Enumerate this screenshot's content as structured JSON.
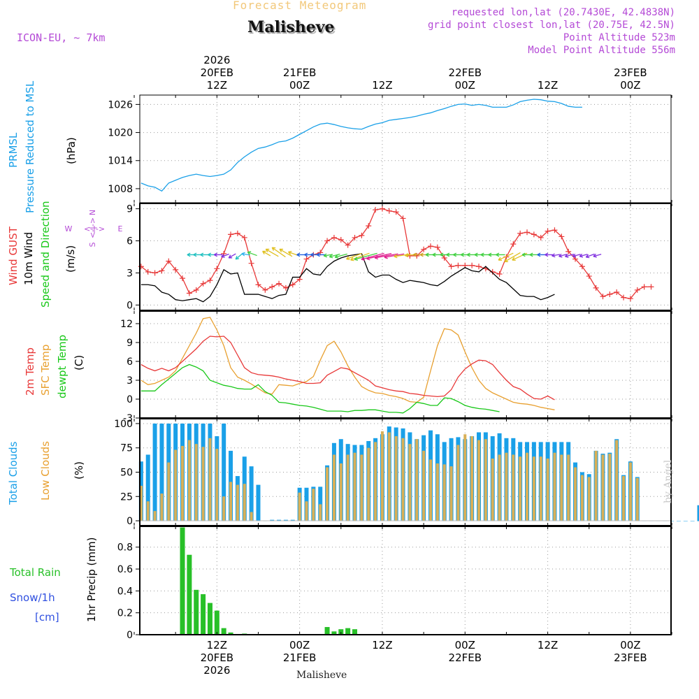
{
  "header": {
    "subtitle": "Forecast Meteogram",
    "location": "Malisheve",
    "model": "ICON-EU, ~ 7km",
    "requested": "requested lon,lat (20.7430E, 42.4838N)",
    "grid_point": "grid point closest lon,lat (20.75E, 42.5N)",
    "point_altitude": "Point Altitude 523m",
    "model_altitude": "Model Point Altitude 556m"
  },
  "footer": {
    "location": "Malisheve",
    "credit": "by Angel"
  },
  "time_axis": {
    "top": [
      {
        "x": 12,
        "lines": [
          "2026",
          "20FEB",
          "12Z"
        ]
      },
      {
        "x": 24,
        "lines": [
          "21FEB",
          "00Z"
        ]
      },
      {
        "x": 36,
        "lines": [
          "12Z"
        ]
      },
      {
        "x": 48,
        "lines": [
          "22FEB",
          "00Z"
        ]
      },
      {
        "x": 60,
        "lines": [
          "12Z"
        ]
      },
      {
        "x": 72,
        "lines": [
          "23FEB",
          "00Z"
        ]
      }
    ],
    "bottom": [
      {
        "x": 12,
        "lines": [
          "12Z",
          "20FEB",
          "2026"
        ]
      },
      {
        "x": 24,
        "lines": [
          "00Z",
          "21FEB"
        ]
      },
      {
        "x": 36,
        "lines": [
          "12Z"
        ]
      },
      {
        "x": 48,
        "lines": [
          "00Z",
          "22FEB"
        ]
      },
      {
        "x": 60,
        "lines": [
          "12Z"
        ]
      },
      {
        "x": 72,
        "lines": [
          "00Z",
          "23FEB"
        ]
      }
    ]
  },
  "panel_labels": {
    "pressure": {
      "name": "PRMSL",
      "desc": "Pressure Reduced to MSL",
      "unit": "(hPa)"
    },
    "wind": {
      "gust": "Wind GUST",
      "wind10": "10m Wind",
      "dir": "Speed and Direction",
      "unit": "(m/s)",
      "compass_n": "N",
      "compass_s": "S",
      "compass_w": "W",
      "compass_e": "E",
      "compass_ns": "<-|->",
      "compass_we": "<-|->"
    },
    "temp": {
      "t2m": "2m Temp",
      "sfc": "SFC Temp",
      "dew": "dewpt Temp",
      "unit": "(C)"
    },
    "clouds": {
      "total": "Total Clouds",
      "low": "Low Clouds",
      "unit": "(%)"
    },
    "precip": {
      "rain": "Total  Rain",
      "snow": "Snow/1h",
      "snow_unit": "[cm]",
      "axis": "1hr Precip (mm)"
    }
  },
  "colors": {
    "pressure": "#1aa0e8",
    "gust": "#e83838",
    "wind": "#000000",
    "t2m": "#e83838",
    "sfc": "#e8a030",
    "dew": "#18c818",
    "total": "#1aa0e8",
    "low": "#d8b058",
    "rain": "#28c028",
    "snow": "#3050e0",
    "purple": "#b44ad6",
    "orange": "#f2c87a"
  },
  "chart_data": [
    {
      "type": "line",
      "title": "PRMSL Pressure Reduced to MSL",
      "ylabel": "(hPa)",
      "ylim": [
        1005,
        1028
      ],
      "yticks": [
        1008,
        1014,
        1020,
        1026
      ],
      "x_hours_from_20FEB00Z": [
        0,
        1,
        2,
        3,
        4,
        5,
        6,
        7,
        8,
        9,
        10,
        11,
        12,
        13,
        14,
        15,
        16,
        17,
        18,
        19,
        20,
        21,
        22,
        23,
        24,
        25,
        26,
        27,
        28,
        29,
        30,
        31,
        32,
        33,
        34,
        35,
        36,
        37,
        38,
        39,
        40,
        41,
        42,
        43,
        44,
        45,
        46,
        47,
        48,
        49,
        50,
        51,
        52,
        53,
        54,
        55,
        56,
        57,
        58,
        59,
        60,
        61,
        62,
        63,
        64,
        65,
        66,
        67,
        68,
        69,
        70,
        71,
        72,
        73,
        74,
        75,
        76
      ],
      "series": [
        {
          "name": "PRMSL",
          "values": [
            1009.2,
            1008.6,
            1008.3,
            1007.5,
            1009.2,
            1009.8,
            1010.4,
            1010.8,
            1011.1,
            1010.8,
            1010.6,
            1010.8,
            1011.1,
            1012.0,
            1013.6,
            1014.8,
            1015.8,
            1016.6,
            1016.9,
            1017.4,
            1018.0,
            1018.2,
            1018.8,
            1019.6,
            1020.4,
            1021.2,
            1021.8,
            1022.0,
            1021.7,
            1021.3,
            1021.0,
            1020.8,
            1020.7,
            1021.3,
            1021.8,
            1022.1,
            1022.6,
            1022.8,
            1023.0,
            1023.2,
            1023.5,
            1023.9,
            1024.2,
            1024.7,
            1025.1,
            1025.6,
            1026.0,
            1026.1,
            1025.8,
            1026.0,
            1025.8,
            1025.4,
            1025.4,
            1025.4,
            1025.9,
            1026.6,
            1026.9,
            1027.1,
            1027.0,
            1026.7,
            1026.6,
            1026.2,
            1025.6,
            1025.4,
            1025.4
          ]
        }
      ]
    },
    {
      "type": "line",
      "title": "Wind GUST / 10m Wind Speed and Direction",
      "ylabel": "(m/s)",
      "ylim": [
        -0.5,
        9.5
      ],
      "yticks": [
        0,
        3,
        6,
        9
      ],
      "series": [
        {
          "name": "Wind GUST",
          "values": [
            3.6,
            3.1,
            3.0,
            3.2,
            4.1,
            3.3,
            2.5,
            1.1,
            1.4,
            2.0,
            2.3,
            3.4,
            4.8,
            6.6,
            6.7,
            6.3,
            3.9,
            1.9,
            1.4,
            1.7,
            2.0,
            1.6,
            1.9,
            2.4,
            4.3,
            4.7,
            4.9,
            6.0,
            6.3,
            6.1,
            5.6,
            6.3,
            6.5,
            7.4,
            8.9,
            9.0,
            8.8,
            8.7,
            8.1,
            4.6,
            4.6,
            5.2,
            5.5,
            5.4,
            4.4,
            3.6,
            3.7,
            3.7,
            3.7,
            3.6,
            3.4,
            3.1,
            2.9,
            4.5,
            5.7,
            6.7,
            6.8,
            6.6,
            6.3,
            6.9,
            7.0,
            6.4,
            5.0,
            4.3,
            3.6,
            2.7,
            1.6,
            0.8,
            1.0,
            1.2,
            0.7,
            0.6,
            1.4,
            1.7,
            1.7
          ]
        },
        {
          "name": "10m Wind",
          "values": [
            1.9,
            1.9,
            1.8,
            1.2,
            1.0,
            0.5,
            0.4,
            0.5,
            0.6,
            0.3,
            0.8,
            1.9,
            3.3,
            2.9,
            3.0,
            1.0,
            1.0,
            1.0,
            0.8,
            0.6,
            0.9,
            1.0,
            2.6,
            2.6,
            3.4,
            2.9,
            2.8,
            3.6,
            4.1,
            4.4,
            4.6,
            4.7,
            4.8,
            3.1,
            2.6,
            2.8,
            2.8,
            2.4,
            2.1,
            2.3,
            2.2,
            2.1,
            1.9,
            1.8,
            2.2,
            2.7,
            3.1,
            3.5,
            3.2,
            3.1,
            3.6,
            3.0,
            2.4,
            2.1,
            1.5,
            0.9,
            0.8,
            0.8,
            0.5,
            0.7,
            1.0
          ]
        }
      ]
    },
    {
      "type": "line",
      "title": "2m Temp / SFC Temp / dewpt Temp",
      "ylabel": "(C)",
      "ylim": [
        -3,
        14
      ],
      "yticks": [
        -3,
        0,
        3,
        6,
        9,
        12
      ],
      "series": [
        {
          "name": "2m Temp",
          "values": [
            5.5,
            4.9,
            4.5,
            4.9,
            4.5,
            5.0,
            6.0,
            7.0,
            8.0,
            9.2,
            10.0,
            9.9,
            10.0,
            9.0,
            7.0,
            5.0,
            4.2,
            3.9,
            3.8,
            3.7,
            3.5,
            3.2,
            3.0,
            2.8,
            2.5,
            2.5,
            2.6,
            3.8,
            4.4,
            5.0,
            4.8,
            4.2,
            3.6,
            3.0,
            2.1,
            1.8,
            1.5,
            1.3,
            1.2,
            0.9,
            0.8,
            0.6,
            0.5,
            0.4,
            0.5,
            1.5,
            3.5,
            4.8,
            5.6,
            6.2,
            6.1,
            5.5,
            4.2,
            3.0,
            2.0,
            1.6,
            0.8,
            0.1,
            0.0,
            0.5,
            -0.1
          ]
        },
        {
          "name": "SFC Temp",
          "values": [
            3.0,
            2.3,
            2.5,
            3.0,
            3.5,
            4.5,
            6.5,
            8.5,
            10.5,
            12.8,
            13.0,
            11.0,
            8.5,
            5.0,
            3.5,
            3.0,
            2.4,
            1.7,
            1.0,
            0.8,
            2.3,
            2.2,
            2.1,
            2.5,
            2.8,
            3.6,
            6.2,
            8.5,
            9.2,
            7.5,
            5.3,
            3.5,
            2.0,
            1.4,
            1.0,
            0.9,
            0.6,
            0.4,
            0.1,
            -0.4,
            -0.5,
            0.3,
            4.5,
            8.5,
            11.2,
            11.0,
            10.2,
            7.5,
            5.0,
            3.0,
            1.7,
            1.0,
            0.5,
            0.0,
            -0.5,
            -0.7,
            -0.8,
            -1.0,
            -1.3,
            -1.5,
            -1.7
          ]
        },
        {
          "name": "dewpt Temp",
          "values": [
            1.3,
            1.3,
            1.3,
            2.3,
            3.2,
            4.1,
            5.0,
            5.5,
            5.1,
            4.5,
            3.0,
            2.6,
            2.2,
            2.0,
            1.7,
            1.6,
            1.6,
            2.3,
            1.2,
            0.6,
            -0.5,
            -0.6,
            -0.8,
            -1.0,
            -1.1,
            -1.3,
            -1.6,
            -1.9,
            -1.9,
            -1.9,
            -2.0,
            -1.8,
            -1.8,
            -1.7,
            -1.7,
            -1.9,
            -2.1,
            -2.1,
            -2.2,
            -1.5,
            -0.5,
            -0.7,
            -1.0,
            -1.0,
            0.2,
            0.1,
            -0.4,
            -1.0,
            -1.3,
            -1.5,
            -1.6,
            -1.8,
            -2.0
          ]
        }
      ]
    },
    {
      "type": "bar",
      "title": "Total Clouds / Low Clouds",
      "ylabel": "(%)",
      "ylim": [
        -5,
        105
      ],
      "yticks": [
        0,
        25,
        50,
        75,
        100
      ],
      "series": [
        {
          "name": "Total Clouds",
          "values": [
            61,
            68,
            100,
            100,
            100,
            100,
            100,
            100,
            100,
            100,
            100,
            87,
            100,
            72,
            46,
            66,
            56,
            37,
            0,
            1,
            1,
            1,
            1,
            34,
            34,
            35,
            35,
            57,
            80,
            84,
            79,
            78,
            78,
            82,
            85,
            89,
            97,
            96,
            95,
            91,
            84,
            88,
            93,
            89,
            81,
            85,
            86,
            84,
            87,
            91,
            91,
            87,
            90,
            85,
            85,
            81,
            81,
            81,
            81,
            81,
            81,
            81,
            81,
            60,
            50,
            48,
            72,
            69,
            70,
            84,
            47,
            61,
            45,
            0,
            0,
            0,
            0,
            0,
            0,
            0,
            0,
            16,
            0,
            0,
            0,
            0,
            0
          ]
        },
        {
          "name": "Low Clouds",
          "values": [
            36,
            20,
            10,
            28,
            60,
            73,
            77,
            83,
            79,
            76,
            85,
            74,
            25,
            40,
            37,
            38,
            9,
            0,
            0,
            0,
            0,
            0,
            0,
            29,
            20,
            33,
            17,
            55,
            68,
            59,
            68,
            70,
            68,
            75,
            81,
            92,
            91,
            87,
            85,
            79,
            84,
            72,
            63,
            59,
            58,
            56,
            78,
            89,
            87,
            83,
            84,
            64,
            68,
            70,
            68,
            66,
            70,
            66,
            66,
            64,
            70,
            68,
            68,
            55,
            47,
            45,
            72,
            68,
            69,
            83,
            46,
            60,
            44
          ]
        }
      ]
    },
    {
      "type": "bar",
      "title": "Total Rain / Snow",
      "ylabel": "1hr Precip (mm)",
      "ylim": [
        0,
        0.99
      ],
      "yticks": [
        0,
        0.2,
        0.4,
        0.6,
        0.8
      ],
      "series": [
        {
          "name": "Total Rain",
          "values": [
            0,
            0,
            0,
            0,
            0,
            0,
            0.98,
            0.73,
            0.41,
            0.37,
            0.29,
            0.22,
            0.06,
            0.02,
            0,
            0.01,
            0,
            0,
            0,
            0,
            0,
            0,
            0,
            0,
            0,
            0,
            0,
            0.07,
            0.03,
            0.05,
            0.06,
            0.05,
            0,
            0,
            0
          ]
        },
        {
          "name": "Snow/1h",
          "values": []
        }
      ]
    }
  ]
}
